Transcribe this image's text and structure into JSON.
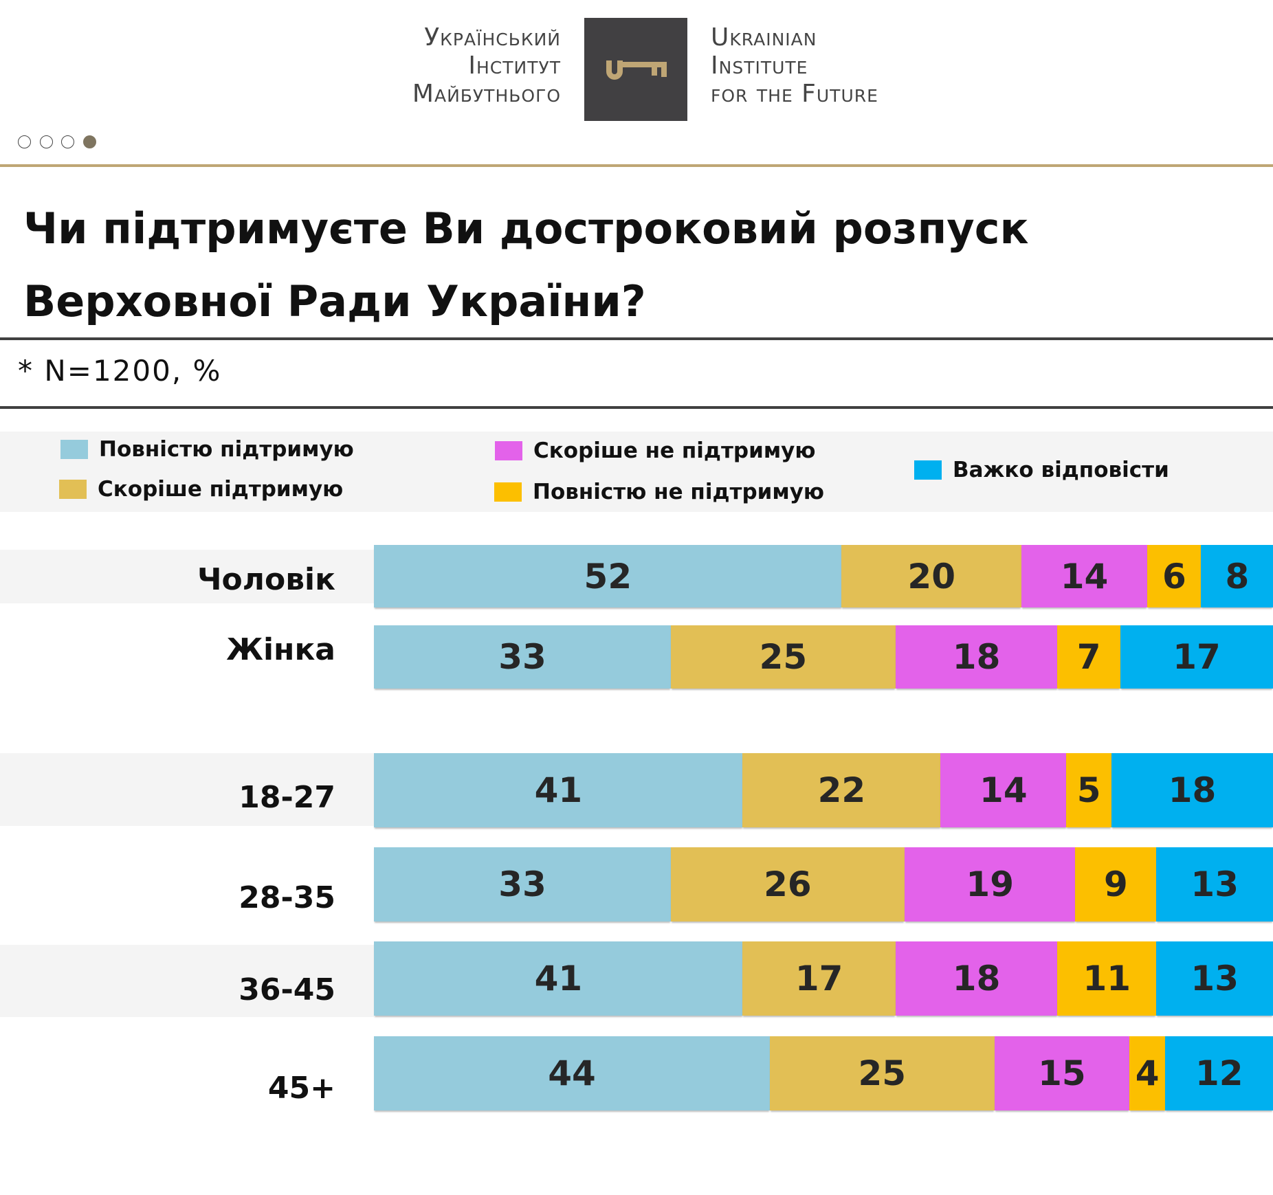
{
  "header": {
    "logo_ua_lines": [
      "Український",
      "Інститут",
      "Майбутнього"
    ],
    "logo_en_lines": [
      "Ukrainian",
      "Institute",
      "for the Future"
    ],
    "logo_icon": "key-icon",
    "pagination": {
      "total": 4,
      "active_index": 3
    }
  },
  "title_lines": [
    "Чи підтримуєте Ви достроковий розпуск",
    "Верховної Ради України?"
  ],
  "note": "* N=1200, %",
  "colors": {
    "fully_support": "#95cbdc",
    "rather_support": "#e2bf55",
    "rather_not_support": "#e362ea",
    "fully_not_support": "#fcbf00",
    "hard_to_say": "#00b0ef",
    "accent_gold": "#bfa675",
    "logo_box": "#414042"
  },
  "chart_data": {
    "type": "bar",
    "orientation": "horizontal",
    "stacked": true,
    "title": "Чи підтримуєте Ви достроковий розпуск Верховної Ради України?",
    "subtitle": "* N=1200, %",
    "xlabel": "",
    "ylabel": "",
    "xlim": [
      0,
      100
    ],
    "grid": false,
    "legend_position": "top",
    "categories": [
      "Чоловік",
      "Жінка",
      "18-27",
      "28-35",
      "36-45",
      "45+"
    ],
    "groups": [
      {
        "name": "gender",
        "categories": [
          "Чоловік",
          "Жінка"
        ]
      },
      {
        "name": "age",
        "categories": [
          "18-27",
          "28-35",
          "36-45",
          "45+"
        ]
      }
    ],
    "series": [
      {
        "name": "Повністю підтримую",
        "key": "fully_support",
        "values": [
          52,
          33,
          41,
          33,
          41,
          44
        ]
      },
      {
        "name": "Скоріше підтримую",
        "key": "rather_support",
        "values": [
          20,
          25,
          22,
          26,
          17,
          25
        ]
      },
      {
        "name": "Скоріше не підтримую",
        "key": "rather_not_support",
        "values": [
          14,
          18,
          14,
          19,
          18,
          15
        ]
      },
      {
        "name": "Повністю не підтримую",
        "key": "fully_not_support",
        "values": [
          6,
          7,
          5,
          9,
          11,
          4
        ]
      },
      {
        "name": "Важко відповісти",
        "key": "hard_to_say",
        "values": [
          8,
          17,
          18,
          13,
          13,
          12
        ]
      }
    ]
  }
}
